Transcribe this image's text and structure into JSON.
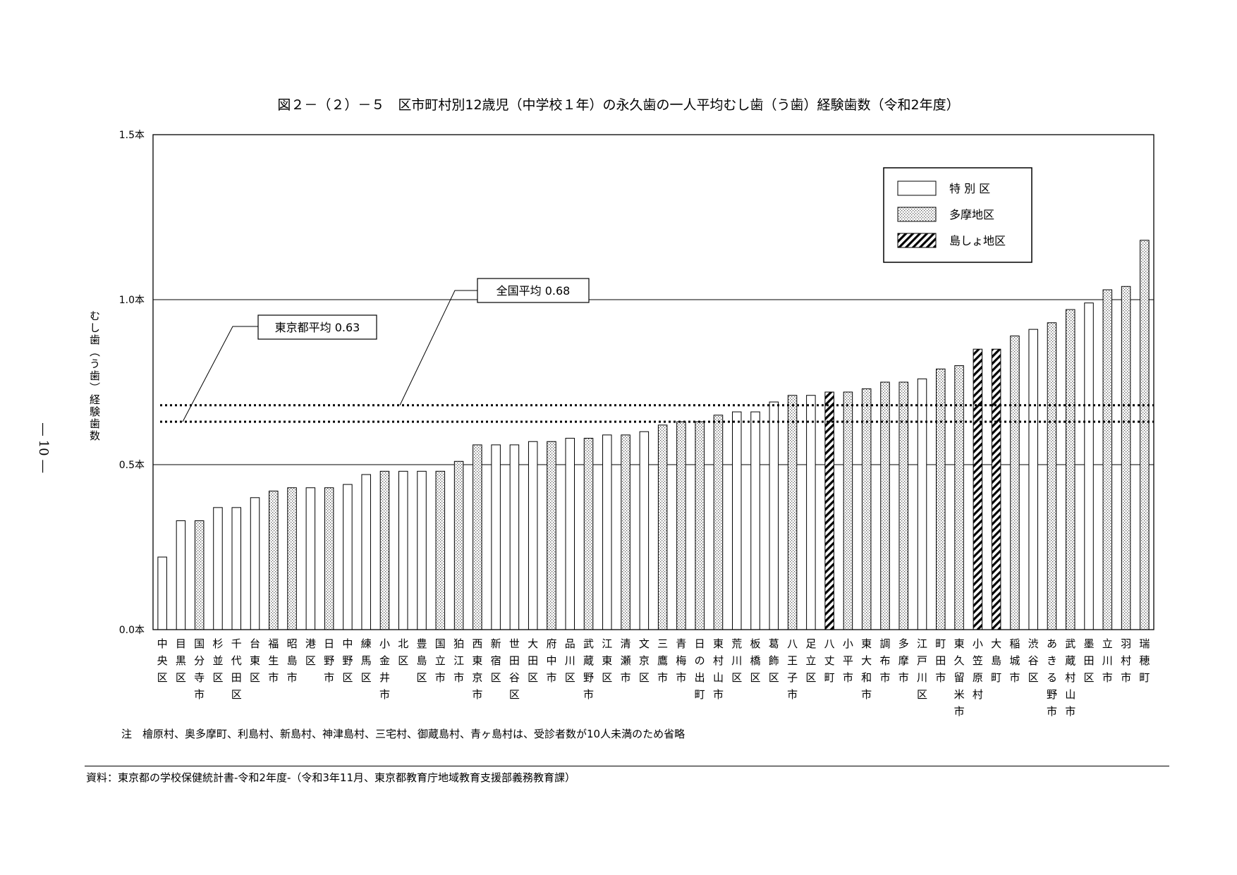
{
  "page_number": "― 10 ―",
  "footnote": "注　檜原村、奥多摩町、利島村、新島村、神津島村、三宅村、御蔵島村、青ヶ島村は、受診者数が10人未満のため省略",
  "source": "資料：東京都の学校保健統計書-令和2年度-（令和3年11月、東京都教育庁地域教育支援部義務教育課）",
  "colors": {
    "special_ward": "#ffffff",
    "tama": "#dcdcdc",
    "island": "#000000",
    "grid": "#000000"
  },
  "chart_data": {
    "type": "bar",
    "title": "図２－（２）－５　区市町村別12歳児（中学校１年）の永久歯の一人平均むし歯（う歯）経験歯数（令和2年度）",
    "ylabel": "むし歯（う歯）経験歯数",
    "ylim": [
      0,
      1.5
    ],
    "yticks": [
      {
        "value": 0.0,
        "label": "0.0本"
      },
      {
        "value": 0.5,
        "label": "0.5本"
      },
      {
        "value": 1.0,
        "label": "1.0本"
      },
      {
        "value": 1.5,
        "label": "1.5本"
      }
    ],
    "grid": true,
    "legend_position": "top-right",
    "legend": [
      {
        "key": "special",
        "label": "特 別 区"
      },
      {
        "key": "tama",
        "label": "多摩地区"
      },
      {
        "key": "island",
        "label": "島しょ地区"
      }
    ],
    "reference_lines": [
      {
        "name": "東京都平均",
        "value": 0.63,
        "label": "東京都平均 0.63"
      },
      {
        "name": "全国平均",
        "value": 0.68,
        "label": "全国平均 0.68"
      }
    ],
    "categories": [
      "中央区",
      "目黒区",
      "国分寺市",
      "杉並区",
      "千代田区",
      "台東区",
      "福生市",
      "昭島市",
      "港区",
      "日野市",
      "中野区",
      "練馬区",
      "小金井市",
      "北区",
      "豊島区",
      "国立市",
      "狛江市",
      "西東京市",
      "新宿区",
      "世田谷区",
      "大田区",
      "府中市",
      "品川区",
      "武蔵野市",
      "江東区",
      "清瀬市",
      "文京区",
      "三鷹市",
      "青梅市",
      "日の出町",
      "東村山市",
      "荒川区",
      "板橋区",
      "葛飾区",
      "八王子市",
      "足立区",
      "八丈町",
      "小平市",
      "東大和市",
      "調布市",
      "多摩市",
      "江戸川区",
      "町田市",
      "東久留米市",
      "小笠原村",
      "大島町",
      "稲城市",
      "渋谷区",
      "あきる野市",
      "武蔵村山市",
      "墨田区",
      "立川市",
      "羽村市",
      "瑞穂町"
    ],
    "values": [
      0.22,
      0.33,
      0.33,
      0.37,
      0.37,
      0.4,
      0.42,
      0.43,
      0.43,
      0.43,
      0.44,
      0.47,
      0.48,
      0.48,
      0.48,
      0.48,
      0.51,
      0.56,
      0.56,
      0.56,
      0.57,
      0.57,
      0.58,
      0.58,
      0.59,
      0.59,
      0.6,
      0.62,
      0.63,
      0.63,
      0.65,
      0.66,
      0.66,
      0.69,
      0.71,
      0.71,
      0.72,
      0.72,
      0.73,
      0.75,
      0.75,
      0.76,
      0.79,
      0.8,
      0.85,
      0.85,
      0.89,
      0.91,
      0.93,
      0.97,
      0.99,
      1.03,
      1.04,
      1.18
    ],
    "groups": [
      "special",
      "special",
      "tama",
      "special",
      "special",
      "special",
      "tama",
      "tama",
      "special",
      "tama",
      "special",
      "special",
      "tama",
      "special",
      "special",
      "tama",
      "tama",
      "tama",
      "special",
      "special",
      "special",
      "tama",
      "special",
      "tama",
      "special",
      "tama",
      "special",
      "tama",
      "tama",
      "tama",
      "tama",
      "special",
      "special",
      "special",
      "tama",
      "special",
      "island",
      "tama",
      "tama",
      "tama",
      "tama",
      "special",
      "tama",
      "tama",
      "island",
      "island",
      "tama",
      "special",
      "tama",
      "tama",
      "special",
      "tama",
      "tama",
      "tama"
    ]
  }
}
